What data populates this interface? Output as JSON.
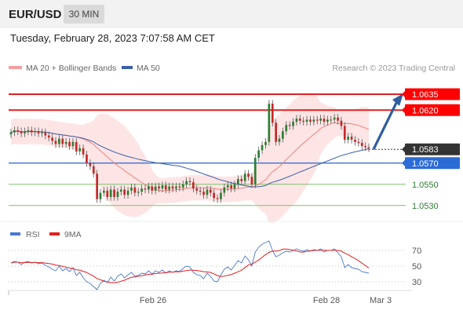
{
  "header": {
    "symbol": "EUR/USD",
    "interval": "30 MIN",
    "datetime": "Tuesday, February 28, 2023 7:07:58 AM CET"
  },
  "legend": {
    "ma20": "MA 20 + Bollinger Bands",
    "ma50": "MA 50",
    "credit": "Research © 2023 Trading Central",
    "rsi": "RSI",
    "ma9": "9MA"
  },
  "colors": {
    "resistance": "#e41e1e",
    "support": "#2a62c9",
    "support_light": "#7ac46a",
    "current": "#333333",
    "ma20": "#f08080",
    "ma50": "#3c5fa8",
    "bands": "#fde0e0",
    "candle_up": "#2e7d32",
    "candle_down": "#c62828",
    "rsi": "#4a78d0",
    "rsi_ma": "#e02020",
    "arrow": "#2e5d9e"
  },
  "chart_data": {
    "type": "candlestick",
    "title": "EUR/USD",
    "price_range": [
      1.0515,
      1.0655
    ],
    "levels": [
      {
        "label": "1.0635",
        "value": 1.0635,
        "type": "resistance"
      },
      {
        "label": "1.0620",
        "value": 1.062,
        "type": "resistance"
      },
      {
        "label": "1.0583",
        "value": 1.0583,
        "type": "current"
      },
      {
        "label": "1.0570",
        "value": 1.057,
        "type": "support"
      },
      {
        "label": "1.0550",
        "value": 1.055,
        "type": "support-minor"
      },
      {
        "label": "1.0530",
        "value": 1.053,
        "type": "support-minor"
      }
    ],
    "x_ticks": [
      "Feb 26",
      "Feb 28",
      "Mar 3"
    ],
    "projection": {
      "from": 1.0583,
      "to": 1.0635,
      "direction": "up"
    },
    "closes": [
      1.0599,
      1.0601,
      1.06,
      1.0598,
      1.06,
      1.0601,
      1.0599,
      1.06,
      1.0598,
      1.0599,
      1.0596,
      1.0594,
      1.0591,
      1.0588,
      1.0593,
      1.0588,
      1.059,
      1.0586,
      1.059,
      1.0581,
      1.0584,
      1.0578,
      1.057,
      1.0567,
      1.056,
      1.0536,
      1.0542,
      1.0544,
      1.0538,
      1.0545,
      1.0538,
      1.0543,
      1.0545,
      1.054,
      1.0544,
      1.0547,
      1.0542,
      1.0543,
      1.0546,
      1.0545,
      1.0548,
      1.0544,
      1.0548,
      1.0546,
      1.0549,
      1.0545,
      1.0548,
      1.0546,
      1.0548,
      1.0547,
      1.055,
      1.0553,
      1.0552,
      1.0546,
      1.0544,
      1.0543,
      1.054,
      1.0545,
      1.0542,
      1.0537,
      1.0536,
      1.0542,
      1.0547,
      1.0549,
      1.0546,
      1.055,
      1.0555,
      1.0553,
      1.056,
      1.0557,
      1.055,
      1.0575,
      1.0582,
      1.0587,
      1.059,
      1.0626,
      1.0608,
      1.059,
      1.0593,
      1.06,
      1.0606,
      1.0605,
      1.0609,
      1.0612,
      1.061,
      1.0609,
      1.0611,
      1.0609,
      1.0611,
      1.061,
      1.0612,
      1.0609,
      1.0611,
      1.0611,
      1.0613,
      1.061,
      1.0605,
      1.0592,
      1.0595,
      1.0592,
      1.059,
      1.0589,
      1.0586,
      1.0585,
      1.0584
    ],
    "rsi": {
      "levels": [
        70,
        50,
        30
      ],
      "range": [
        15,
        85
      ],
      "values": [
        54,
        56,
        55,
        52,
        55,
        56,
        54,
        55,
        53,
        54,
        51,
        49,
        46,
        44,
        50,
        44,
        47,
        43,
        48,
        38,
        42,
        35,
        30,
        28,
        24,
        20,
        28,
        32,
        29,
        36,
        31,
        37,
        40,
        35,
        39,
        42,
        37,
        38,
        41,
        40,
        44,
        40,
        44,
        42,
        45,
        41,
        44,
        42,
        44,
        43,
        47,
        50,
        49,
        42,
        39,
        38,
        34,
        41,
        37,
        31,
        30,
        39,
        46,
        49,
        45,
        51,
        57,
        54,
        63,
        58,
        50,
        68,
        74,
        78,
        80,
        82,
        70,
        62,
        64,
        67,
        69,
        68,
        70,
        72,
        70,
        69,
        71,
        69,
        71,
        70,
        72,
        68,
        70,
        70,
        72,
        67,
        62,
        48,
        52,
        48,
        47,
        46,
        43,
        42,
        41
      ]
    }
  }
}
